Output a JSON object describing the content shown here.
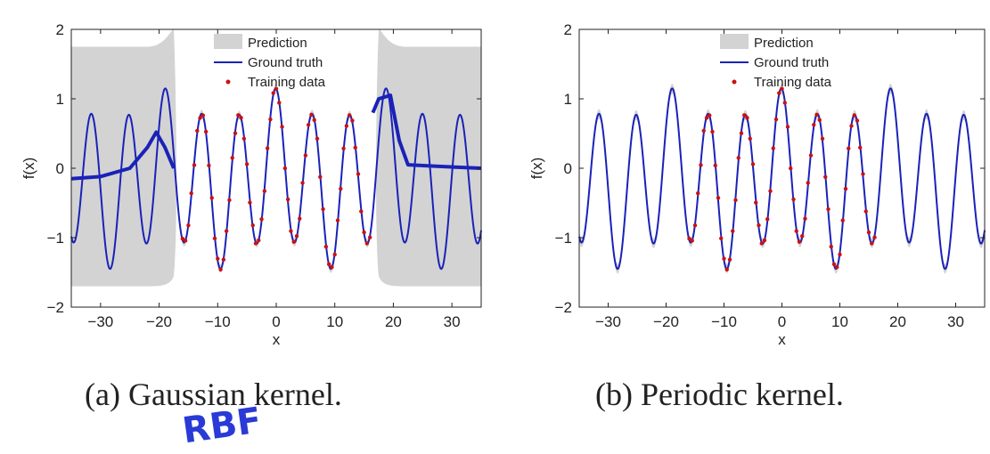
{
  "chart_data": [
    {
      "type": "line",
      "caption": "(a) Gaussian kernel.",
      "annotation": "RBF",
      "xlabel": "x",
      "ylabel": "f(x)",
      "xlim": [
        -35,
        35
      ],
      "ylim": [
        -2,
        2
      ],
      "xticks": [
        -30,
        -20,
        -10,
        0,
        10,
        20,
        30
      ],
      "yticks": [
        -2,
        -1,
        0,
        1,
        2
      ],
      "grid": false,
      "legend_position": "top-right",
      "legend": [
        "Prediction",
        "Ground truth",
        "Training data"
      ],
      "training_range": [
        -16,
        16
      ],
      "ground_truth": "f(x) = cos(x) + 0.15*cos(x/5)... (periodic, period ~6.3, amplitude ~1.1 to -1.5)",
      "prediction_band_outside_training": [
        -1.7,
        1.75
      ],
      "prediction_mean_left": [
        [
          -35,
          -0.15
        ],
        [
          -30,
          -0.12
        ],
        [
          -25,
          0.0
        ],
        [
          -22,
          0.3
        ],
        [
          -20.5,
          0.52
        ],
        [
          -19,
          0.3
        ],
        [
          -17.5,
          0.0
        ]
      ],
      "prediction_mean_right": [
        [
          16.5,
          0.8
        ],
        [
          17.5,
          1.0
        ],
        [
          19.5,
          1.05
        ],
        [
          21,
          0.4
        ],
        [
          22.5,
          0.05
        ],
        [
          27,
          0.03
        ],
        [
          35,
          0.0
        ]
      ]
    },
    {
      "type": "line",
      "caption": "(b) Periodic kernel.",
      "xlabel": "x",
      "ylabel": "f(x)",
      "xlim": [
        -35,
        35
      ],
      "ylim": [
        -2,
        2
      ],
      "xticks": [
        -30,
        -20,
        -10,
        0,
        10,
        20,
        30
      ],
      "yticks": [
        -2,
        -1,
        0,
        1,
        2
      ],
      "grid": false,
      "legend_position": "top-right",
      "legend": [
        "Prediction",
        "Ground truth",
        "Training data"
      ],
      "training_range": [
        -16,
        16
      ]
    }
  ],
  "colors": {
    "prediction_band": "#d3d3d3",
    "ground_truth": "#1a22b8",
    "training_data": "#cc1111",
    "axes": "#222222"
  }
}
